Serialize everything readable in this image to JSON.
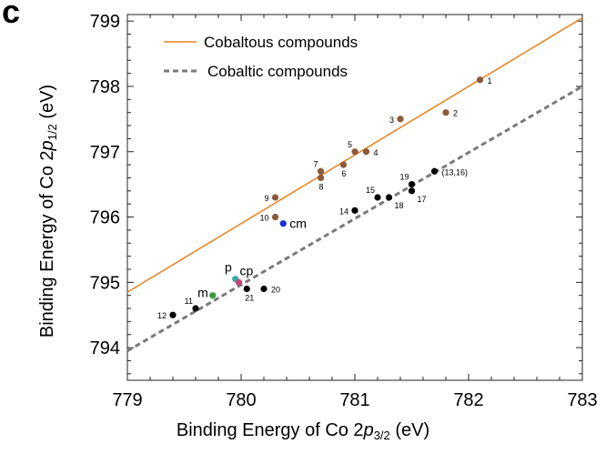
{
  "panel_label": "c",
  "chart_data": {
    "type": "scatter",
    "xlabel": {
      "prefix": "Binding Energy of Co 2",
      "italic": "p",
      "sub": "3/2",
      "suffix": " (eV)"
    },
    "ylabel": {
      "prefix": "Binding Energy of Co 2",
      "italic": "p",
      "sub": "1/2",
      "suffix": " (eV)"
    },
    "xlim": [
      779,
      783
    ],
    "ylim": [
      793.5,
      799.1
    ],
    "xticks": [
      "779",
      "780",
      "781",
      "782",
      "783"
    ],
    "yticks": [
      "794",
      "795",
      "796",
      "797",
      "798",
      "799"
    ],
    "xtick_values": [
      779,
      780,
      781,
      782,
      783
    ],
    "ytick_values": [
      794,
      795,
      796,
      797,
      798,
      799
    ],
    "grid": false,
    "legend_position": "top-left",
    "lines": [
      {
        "name": "Cobaltous compounds",
        "color": "#e8801f",
        "dash": false,
        "x": [
          779,
          783
        ],
        "y": [
          794.85,
          799.05
        ]
      },
      {
        "name": "Cobaltic compounds",
        "color": "#7a7a7a",
        "dash": true,
        "x": [
          779,
          783
        ],
        "y": [
          793.95,
          798.0
        ]
      }
    ],
    "points": [
      {
        "label": "1",
        "x": 782.1,
        "y": 798.1,
        "color": "#8b5a3c",
        "label_side": "right"
      },
      {
        "label": "2",
        "x": 781.8,
        "y": 797.6,
        "color": "#8b5a3c",
        "label_side": "right"
      },
      {
        "label": "3",
        "x": 781.4,
        "y": 797.5,
        "color": "#8b5a3c",
        "label_side": "left"
      },
      {
        "label": "4",
        "x": 781.1,
        "y": 797.0,
        "color": "#8b5a3c",
        "label_side": "right"
      },
      {
        "label": "5",
        "x": 781.0,
        "y": 797.0,
        "color": "#8b5a3c",
        "label_side": "upleft"
      },
      {
        "label": "6",
        "x": 780.9,
        "y": 796.8,
        "color": "#8b5a3c",
        "label_side": "below"
      },
      {
        "label": "7",
        "x": 780.7,
        "y": 796.7,
        "color": "#8b5a3c",
        "label_side": "upleft"
      },
      {
        "label": "8",
        "x": 780.7,
        "y": 796.6,
        "color": "#8b5a3c",
        "label_side": "below"
      },
      {
        "label": "9",
        "x": 780.3,
        "y": 796.3,
        "color": "#8b5a3c",
        "label_side": "left"
      },
      {
        "label": "10",
        "x": 780.3,
        "y": 796.0,
        "color": "#8b5a3c",
        "label_side": "left"
      },
      {
        "label": "cm",
        "x": 780.37,
        "y": 795.9,
        "color": "#1f2fd6",
        "label_side": "right-big"
      },
      {
        "label": "13,16",
        "x": 781.7,
        "y": 796.7,
        "color": "#000000",
        "label_side": "right-paren"
      },
      {
        "label": "19",
        "x": 781.5,
        "y": 796.5,
        "color": "#000000",
        "label_side": "upleft"
      },
      {
        "label": "17",
        "x": 781.5,
        "y": 796.4,
        "color": "#000000",
        "label_side": "below-right"
      },
      {
        "label": "15",
        "x": 781.2,
        "y": 796.3,
        "color": "#000000",
        "label_side": "upleft"
      },
      {
        "label": "18",
        "x": 781.3,
        "y": 796.3,
        "color": "#000000",
        "label_side": "below-right"
      },
      {
        "label": "14",
        "x": 781.0,
        "y": 796.1,
        "color": "#000000",
        "label_side": "left"
      },
      {
        "label": "p",
        "x": 779.95,
        "y": 795.05,
        "color": "#3aa6a6",
        "label_side": "upleft-big"
      },
      {
        "label": "cp",
        "x": 779.98,
        "y": 795.0,
        "color": "#c0447a",
        "label_side": "upright-big"
      },
      {
        "label": "20",
        "x": 780.2,
        "y": 794.9,
        "color": "#000000",
        "label_side": "right"
      },
      {
        "label": "21",
        "x": 780.05,
        "y": 794.9,
        "color": "#000000",
        "label_side": "below"
      },
      {
        "label": "m",
        "x": 779.75,
        "y": 794.8,
        "color": "#3a9a3a",
        "label_side": "left-big"
      },
      {
        "label": "11",
        "x": 779.6,
        "y": 794.6,
        "color": "#000000",
        "label_side": "upleft"
      },
      {
        "label": "12",
        "x": 779.4,
        "y": 794.5,
        "color": "#000000",
        "label_side": "left"
      }
    ]
  }
}
